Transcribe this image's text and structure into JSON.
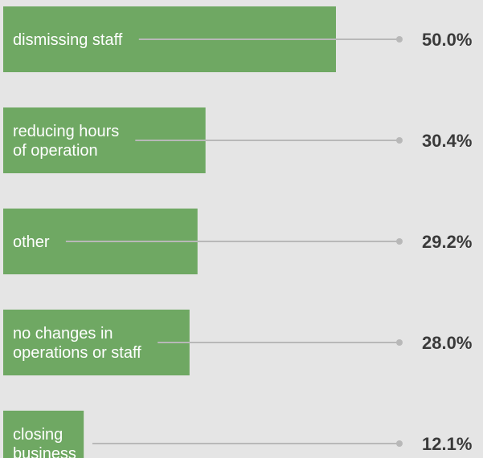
{
  "chart_data": {
    "type": "bar",
    "orientation": "horizontal",
    "categories": [
      "dismissing staff",
      "reducing hours\nof operation",
      "other",
      "no changes in\noperations or staff",
      "closing\nbusiness"
    ],
    "values": [
      50.0,
      30.4,
      29.2,
      28.0,
      12.1
    ],
    "value_labels": [
      "50.0%",
      "30.4%",
      "29.2%",
      "28.0%",
      "12.1%"
    ],
    "color": "#6fa863"
  }
}
